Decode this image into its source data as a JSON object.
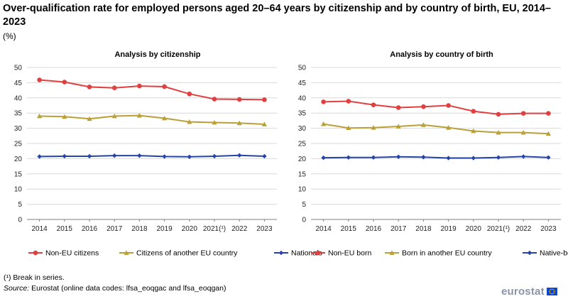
{
  "title": "Over-qualification rate for employed persons aged 20–64 years by citizenship and by country of birth, EU, 2014–2023",
  "unit": "(%)",
  "footnotes": {
    "break": "(¹) Break in series.",
    "source_label": "Source:",
    "source_text": " Eurostat (online data codes: lfsa_eoqgac and lfsa_eoqgan)"
  },
  "logo": {
    "text": "eurostat",
    "flag_color": "#0e47cb",
    "star_color": "#ffd617"
  },
  "chart_data": [
    {
      "type": "line",
      "title": "Analysis by citizenship",
      "categories": [
        "2014",
        "2015",
        "2016",
        "2017",
        "2018",
        "2019",
        "2020",
        "2021(¹)",
        "2022",
        "2023"
      ],
      "ylim": [
        0,
        50
      ],
      "yticks": [
        0,
        5,
        10,
        15,
        20,
        25,
        30,
        35,
        40,
        45,
        50
      ],
      "grid": true,
      "legend_position": "bottom",
      "series": [
        {
          "name": "Non-EU citizens",
          "color": "#e04040",
          "marker": "circle",
          "values": [
            45.9,
            45.2,
            43.6,
            43.3,
            43.9,
            43.7,
            41.3,
            39.6,
            39.5,
            39.4
          ]
        },
        {
          "name": "Citizens of another EU country",
          "color": "#b9a038",
          "marker": "triangle",
          "values": [
            34.0,
            33.8,
            33.1,
            34.0,
            34.2,
            33.3,
            32.1,
            31.9,
            31.7,
            31.3
          ]
        },
        {
          "name": "Nationals",
          "color": "#2644a8",
          "marker": "diamond",
          "values": [
            20.7,
            20.8,
            20.8,
            21.0,
            21.0,
            20.7,
            20.6,
            20.8,
            21.1,
            20.8
          ]
        }
      ]
    },
    {
      "type": "line",
      "title": "Analysis by country of birth",
      "categories": [
        "2014",
        "2015",
        "2016",
        "2017",
        "2018",
        "2019",
        "2020",
        "2021(¹)",
        "2022",
        "2023"
      ],
      "ylim": [
        0,
        50
      ],
      "yticks": [
        0,
        5,
        10,
        15,
        20,
        25,
        30,
        35,
        40,
        45,
        50
      ],
      "grid": true,
      "legend_position": "bottom",
      "series": [
        {
          "name": "Non-EU born",
          "color": "#e04040",
          "marker": "circle",
          "values": [
            38.7,
            38.9,
            37.7,
            36.8,
            37.1,
            37.5,
            35.6,
            34.6,
            34.9,
            34.9
          ]
        },
        {
          "name": "Born in another EU country",
          "color": "#b9a038",
          "marker": "triangle",
          "values": [
            31.4,
            30.1,
            30.2,
            30.6,
            31.1,
            30.2,
            29.1,
            28.6,
            28.6,
            28.2
          ]
        },
        {
          "name": "Native-born",
          "color": "#2644a8",
          "marker": "diamond",
          "values": [
            20.3,
            20.4,
            20.4,
            20.6,
            20.5,
            20.2,
            20.2,
            20.4,
            20.7,
            20.4
          ]
        }
      ]
    }
  ]
}
